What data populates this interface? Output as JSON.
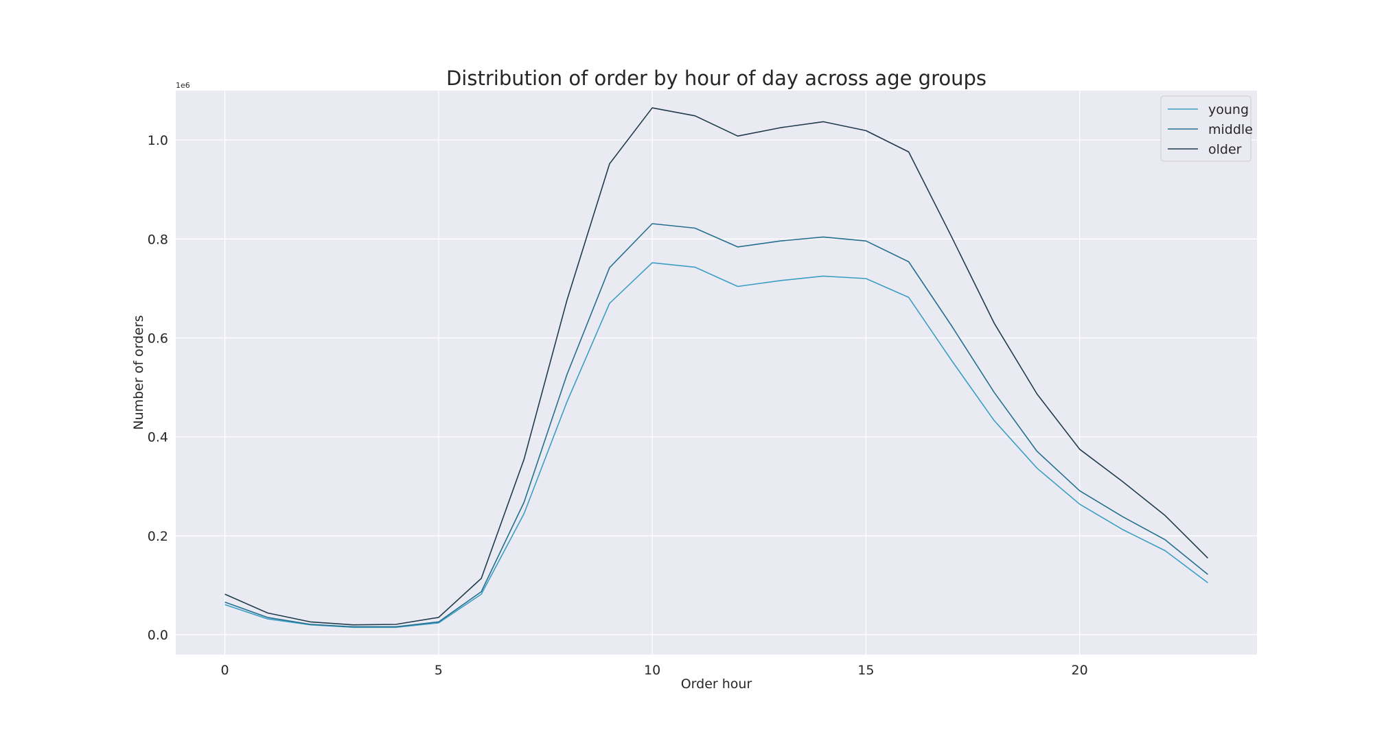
{
  "chart_data": {
    "type": "line",
    "title": "Distribution of order by hour of day across age groups",
    "xlabel": "Order hour",
    "ylabel": "Number of orders",
    "y_exponent_label": "1e6",
    "xlim": [
      -1.15,
      24.15
    ],
    "ylim": [
      -0.04,
      1.1
    ],
    "x_ticks": [
      0,
      5,
      10,
      15,
      20
    ],
    "y_ticks": [
      0.0,
      0.2,
      0.4,
      0.6,
      0.8,
      1.0
    ],
    "y_tick_labels": [
      "0.0",
      "0.2",
      "0.4",
      "0.6",
      "0.8",
      "1.0"
    ],
    "grid": true,
    "legend_position": "top-right",
    "x": [
      0,
      1,
      2,
      3,
      4,
      5,
      6,
      7,
      8,
      9,
      10,
      11,
      12,
      13,
      14,
      15,
      16,
      17,
      18,
      19,
      20,
      21,
      22,
      23
    ],
    "series": [
      {
        "name": "young",
        "color": "#3a9ec4",
        "values": [
          0.061,
          0.032,
          0.02,
          0.015,
          0.015,
          0.024,
          0.082,
          0.245,
          0.47,
          0.67,
          0.752,
          0.743,
          0.704,
          0.716,
          0.725,
          0.72,
          0.682,
          0.555,
          0.433,
          0.337,
          0.264,
          0.213,
          0.17,
          0.105
        ]
      },
      {
        "name": "middle",
        "color": "#236f8f",
        "values": [
          0.066,
          0.035,
          0.021,
          0.016,
          0.016,
          0.026,
          0.087,
          0.268,
          0.525,
          0.742,
          0.831,
          0.822,
          0.784,
          0.796,
          0.804,
          0.796,
          0.754,
          0.625,
          0.49,
          0.371,
          0.291,
          0.239,
          0.192,
          0.122
        ]
      },
      {
        "name": "older",
        "color": "#1e3a4c",
        "values": [
          0.082,
          0.044,
          0.026,
          0.02,
          0.021,
          0.035,
          0.114,
          0.355,
          0.675,
          0.952,
          1.065,
          1.049,
          1.008,
          1.025,
          1.037,
          1.019,
          0.976,
          0.805,
          0.63,
          0.487,
          0.375,
          0.31,
          0.241,
          0.155
        ]
      }
    ]
  }
}
